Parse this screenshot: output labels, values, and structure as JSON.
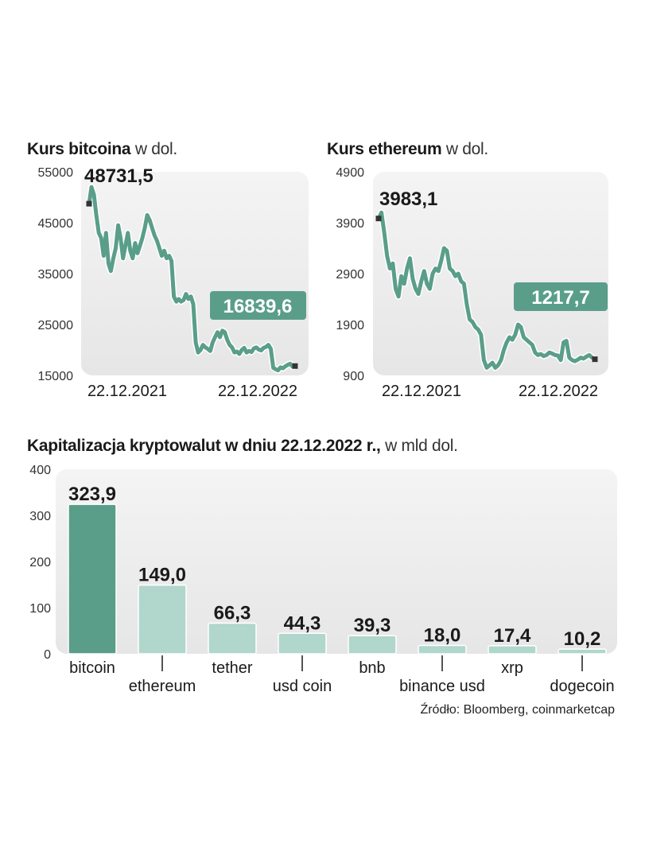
{
  "charts": {
    "bitcoin": {
      "title_bold": "Kurs bitcoina",
      "title_unit": "w dol.",
      "start_label": "48731,5",
      "end_label": "16839,6",
      "date_start": "22.12.2021",
      "date_end": "22.12.2022"
    },
    "ethereum": {
      "title_bold": "Kurs ethereum",
      "title_unit": "w dol.",
      "start_label": "3983,1",
      "end_label": "1217,7",
      "date_start": "22.12.2021",
      "date_end": "22.12.2022"
    },
    "capitalization": {
      "title_bold": "Kapitalizacja kryptowalut w dniu 22.12.2022 r.,",
      "title_unit": "w mld dol."
    }
  },
  "source": "Źródło: Bloomberg, coinmarketcap",
  "colors": {
    "accent": "#5a9e8a",
    "accent_light": "#b1d6cc",
    "panel": "#ececec",
    "line": "#5a9e8a"
  },
  "chart_data": [
    {
      "type": "line",
      "title": "Kurs bitcoina w dol.",
      "x_range": [
        "22.12.2021",
        "22.12.2022"
      ],
      "ylim": [
        15000,
        55000
      ],
      "yticks": [
        15000,
        25000,
        35000,
        45000,
        55000
      ],
      "ytick_labels": [
        "15000",
        "25000",
        "35000",
        "45000",
        "55000"
      ],
      "start_value": 48731.5,
      "end_value": 16839.6,
      "y": [
        48731,
        52000,
        50500,
        46500,
        43000,
        42000,
        38500,
        43000,
        37000,
        35500,
        38000,
        40000,
        44500,
        42000,
        38000,
        40500,
        43000,
        39500,
        38000,
        41000,
        39000,
        40500,
        42000,
        44000,
        46500,
        45500,
        44000,
        42500,
        41500,
        40000,
        38500,
        39500,
        38000,
        38500,
        37500,
        30500,
        29500,
        30000,
        29500,
        29800,
        31000,
        30000,
        30500,
        29000,
        21500,
        19500,
        20000,
        21000,
        20500,
        20200,
        19800,
        21500,
        22500,
        23500,
        22500,
        23800,
        23500,
        22000,
        21000,
        20500,
        19500,
        19700,
        19200,
        20000,
        20400,
        19500,
        19800,
        19600,
        20300,
        20500,
        20100,
        19900,
        20400,
        20600,
        21000,
        20200,
        16500,
        16200,
        16000,
        16600,
        16400,
        16800,
        17100,
        17300,
        16700,
        16839.6
      ],
      "xlabel": "",
      "ylabel": ""
    },
    {
      "type": "line",
      "title": "Kurs ethereum w dol.",
      "x_range": [
        "22.12.2021",
        "22.12.2022"
      ],
      "ylim": [
        900,
        4900
      ],
      "yticks": [
        900,
        1900,
        2900,
        3900,
        4900
      ],
      "ytick_labels": [
        "900",
        "1900",
        "2900",
        "3900",
        "4900"
      ],
      "start_value": 3983.1,
      "end_value": 1217.7,
      "y": [
        3983,
        4100,
        3700,
        3250,
        3000,
        3100,
        2600,
        2450,
        2850,
        2700,
        3000,
        3200,
        2800,
        2600,
        2500,
        2750,
        2950,
        2700,
        2600,
        2900,
        3000,
        2950,
        3150,
        3400,
        3350,
        3000,
        2950,
        2850,
        2900,
        2750,
        2700,
        2300,
        2000,
        1950,
        1850,
        1800,
        1700,
        1200,
        1050,
        1100,
        1150,
        1050,
        1100,
        1200,
        1400,
        1550,
        1650,
        1600,
        1700,
        1900,
        1850,
        1650,
        1600,
        1550,
        1500,
        1350,
        1300,
        1320,
        1280,
        1300,
        1350,
        1330,
        1300,
        1290,
        1200,
        1550,
        1580,
        1250,
        1200,
        1180,
        1210,
        1250,
        1230,
        1270,
        1300,
        1250,
        1217.7
      ],
      "xlabel": "",
      "ylabel": ""
    },
    {
      "type": "bar",
      "title": "Kapitalizacja kryptowalut w dniu 22.12.2022 r., w mld dol.",
      "categories": [
        "bitcoin",
        "ethereum",
        "tether",
        "usd coin",
        "bnb",
        "binance usd",
        "xrp",
        "dogecoin"
      ],
      "values": [
        323.9,
        149.0,
        66.3,
        44.3,
        39.3,
        18.0,
        17.4,
        10.2
      ],
      "value_labels": [
        "323,9",
        "149,0",
        "66,3",
        "44,3",
        "39,3",
        "18,0",
        "17,4",
        "10,2"
      ],
      "ylim": [
        0,
        400
      ],
      "yticks": [
        0,
        100,
        200,
        300,
        400
      ],
      "highlight": "bitcoin",
      "xlabel": "",
      "ylabel": ""
    }
  ]
}
